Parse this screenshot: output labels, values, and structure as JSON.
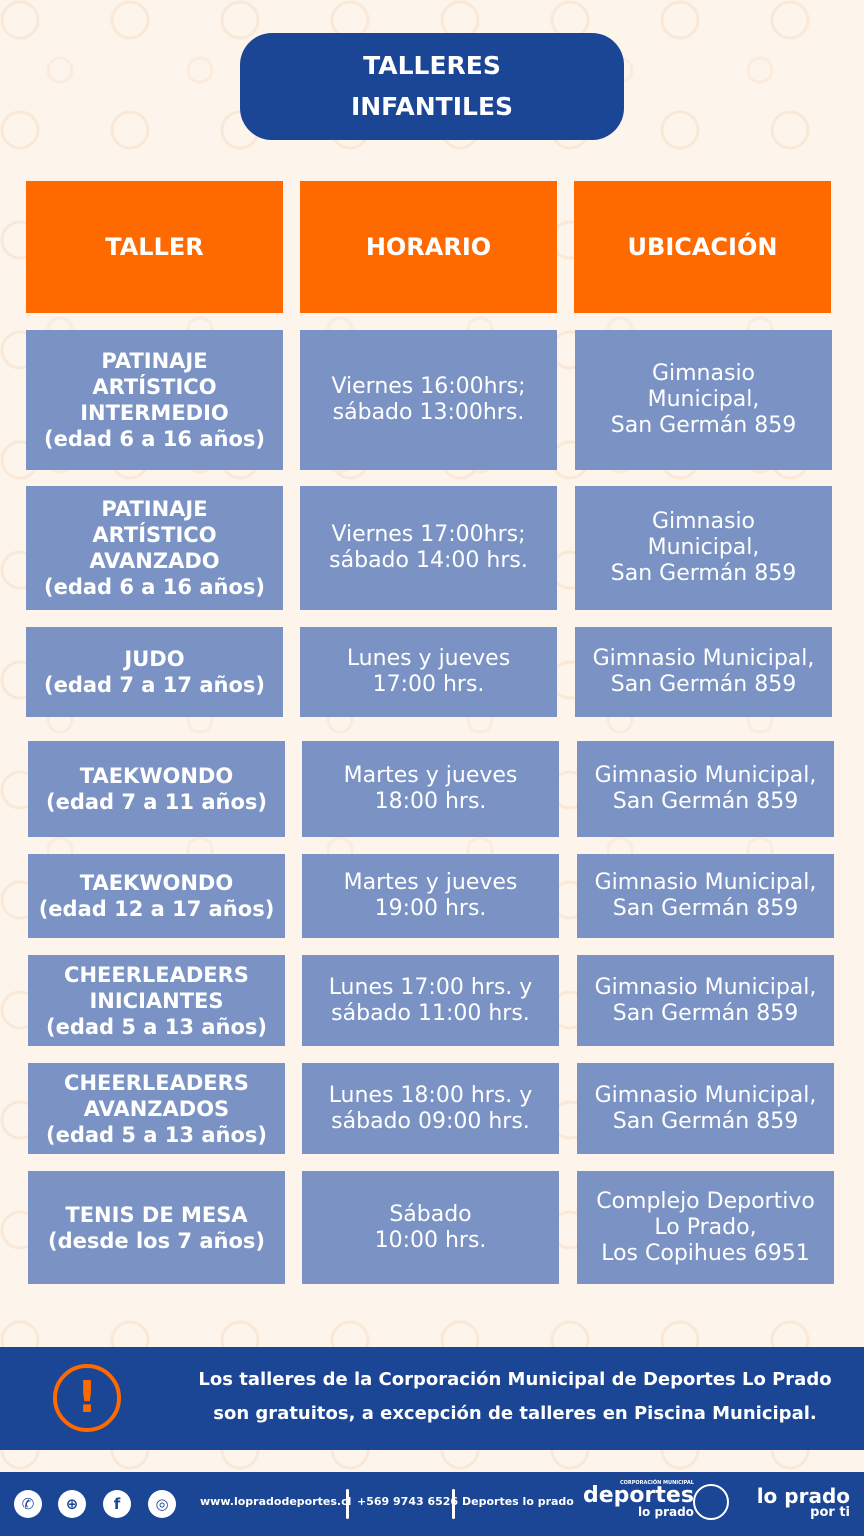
{
  "title": "TALLERES\nINFANTILES",
  "headers": [
    "TALLER",
    "HORARIO",
    "UBICACIÓN"
  ],
  "rows": [
    {
      "taller": "PATINAJE\nARTÍSTICO\nINTERMEDIO\n(edad 6 a 16 años)",
      "horario": "Viernes 16:00hrs;\nsábado 13:00hrs.",
      "ubicacion": "Gimnasio\nMunicipal,\nSan Germán 859"
    },
    {
      "taller": "PATINAJE\nARTÍSTICO\nAVANZADO\n(edad 6 a 16 años)",
      "horario": "Viernes 17:00hrs;\nsábado 14:00 hrs.",
      "ubicacion": "Gimnasio\nMunicipal,\nSan Germán 859"
    },
    {
      "taller": "JUDO\n(edad 7 a 17 años)",
      "horario": "Lunes y jueves\n17:00 hrs.",
      "ubicacion": "Gimnasio Municipal,\nSan Germán 859"
    },
    {
      "taller": "TAEKWONDO\n(edad 7 a 11 años)",
      "horario": "Martes y jueves\n18:00 hrs.",
      "ubicacion": "Gimnasio Municipal,\nSan Germán 859"
    },
    {
      "taller": "TAEKWONDO\n(edad 12 a 17 años)",
      "horario": "Martes y jueves\n19:00 hrs.",
      "ubicacion": "Gimnasio Municipal,\nSan Germán 859"
    },
    {
      "taller": "CHEERLEADERS\nINICIANTES\n(edad 5 a 13 años)",
      "horario": "Lunes 17:00 hrs. y\nsábado 11:00 hrs.",
      "ubicacion": "Gimnasio Municipal,\nSan Germán 859"
    },
    {
      "taller": "CHEERLEADERS\nAVANZADOS\n(edad 5 a 13 años)",
      "horario": "Lunes 18:00 hrs. y\nsábado 09:00 hrs.",
      "ubicacion": "Gimnasio Municipal,\nSan Germán 859"
    },
    {
      "taller": "TENIS DE MESA\n(desde los 7 años)",
      "horario": "Sábado\n10:00 hrs.",
      "ubicacion": "Complejo Deportivo\nLo Prado,\nLos Copihues 6951"
    }
  ],
  "notice": {
    "icon": "exclamation-circle-icon",
    "text": "Los talleres de la Corporación Municipal de Deportes Lo Prado\nson gratuitos, a excepción de talleres en Piscina Municipal."
  },
  "footer": {
    "website": "www.lopradodeportes.cl",
    "phone": "+569 9743 6526",
    "social": "Deportes lo prado",
    "logo_small": "CORPORACIÓN MUNICIPAL",
    "logo_main": "deportes",
    "logo_sub": "lo prado",
    "brand_main": "lo prado",
    "brand_sub": "por ti"
  },
  "colors": {
    "primary": "#1b4595",
    "accent": "#ff6a00",
    "cell": "#7b93c4"
  }
}
